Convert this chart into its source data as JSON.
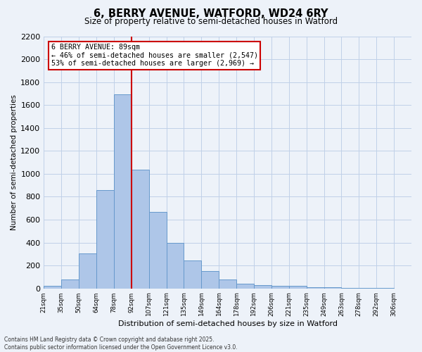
{
  "title": "6, BERRY AVENUE, WATFORD, WD24 6RY",
  "subtitle": "Size of property relative to semi-detached houses in Watford",
  "xlabel": "Distribution of semi-detached houses by size in Watford",
  "ylabel": "Number of semi-detached properties",
  "bin_labels": [
    "21sqm",
    "35sqm",
    "50sqm",
    "64sqm",
    "78sqm",
    "92sqm",
    "107sqm",
    "121sqm",
    "135sqm",
    "149sqm",
    "164sqm",
    "178sqm",
    "192sqm",
    "206sqm",
    "221sqm",
    "235sqm",
    "249sqm",
    "263sqm",
    "278sqm",
    "292sqm",
    "306sqm"
  ],
  "bar_values": [
    20,
    75,
    305,
    860,
    1695,
    1035,
    670,
    395,
    245,
    150,
    80,
    40,
    30,
    25,
    20,
    10,
    10,
    5,
    5,
    2
  ],
  "bar_color": "#aec6e8",
  "bar_edge_color": "#6699cc",
  "ylim": [
    0,
    2200
  ],
  "yticks": [
    0,
    200,
    400,
    600,
    800,
    1000,
    1200,
    1400,
    1600,
    1800,
    2000,
    2200
  ],
  "vline_color": "#cc0000",
  "annotation_title": "6 BERRY AVENUE: 89sqm",
  "annotation_line1": "← 46% of semi-detached houses are smaller (2,547)",
  "annotation_line2": "53% of semi-detached houses are larger (2,969) →",
  "annotation_box_color": "#ffffff",
  "annotation_box_edge": "#cc0000",
  "bg_color": "#edf2f9",
  "grid_color": "#c0d0e8",
  "footer_line1": "Contains HM Land Registry data © Crown copyright and database right 2025.",
  "footer_line2": "Contains public sector information licensed under the Open Government Licence v3.0."
}
